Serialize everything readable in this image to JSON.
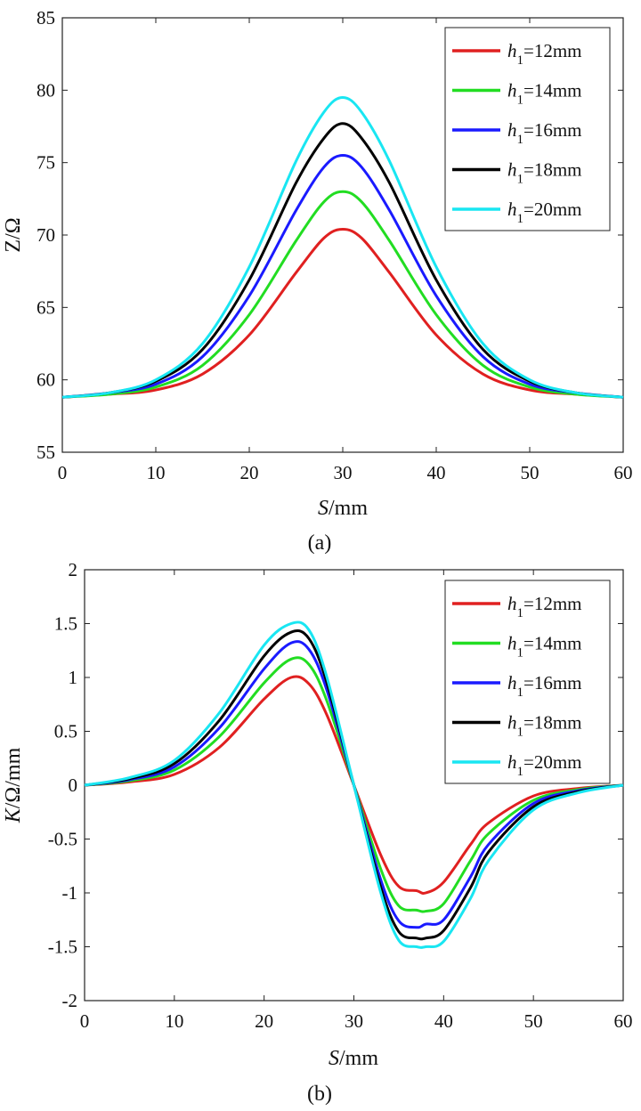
{
  "chart_data": [
    {
      "panel": "a",
      "type": "line",
      "caption": "(a)",
      "xlabel": {
        "italic": "S",
        "rest": "/mm"
      },
      "ylabel": "Z/Ω",
      "xlim": [
        0,
        60
      ],
      "ylim": [
        55,
        85
      ],
      "xticks": [
        0,
        10,
        20,
        30,
        40,
        50,
        60
      ],
      "yticks": [
        55,
        60,
        65,
        70,
        75,
        80,
        85
      ],
      "legend_position": "top-right",
      "x": [
        0,
        5,
        10,
        15,
        20,
        25,
        28,
        30,
        32,
        35,
        40,
        45,
        50,
        55,
        60
      ],
      "series": [
        {
          "name": "h1=12mm",
          "sym": "h",
          "sub": "1",
          "suffix": "=12mm",
          "color": "#e02020",
          "values": [
            58.8,
            59.0,
            59.3,
            60.4,
            63.1,
            67.4,
            69.8,
            70.4,
            69.8,
            67.4,
            63.1,
            60.4,
            59.3,
            59.0,
            58.8
          ]
        },
        {
          "name": "h1=14mm",
          "sym": "h",
          "sub": "1",
          "suffix": "=14mm",
          "color": "#22dd22",
          "values": [
            58.8,
            59.0,
            59.5,
            61.0,
            64.5,
            69.6,
            72.3,
            73.0,
            72.3,
            69.6,
            64.5,
            61.0,
            59.5,
            59.0,
            58.8
          ]
        },
        {
          "name": "h1=16mm",
          "sym": "h",
          "sub": "1",
          "suffix": "=16mm",
          "color": "#1a1aff",
          "values": [
            58.8,
            59.1,
            59.7,
            61.6,
            65.8,
            71.7,
            74.7,
            75.5,
            74.7,
            71.7,
            65.8,
            61.6,
            59.7,
            59.1,
            58.8
          ]
        },
        {
          "name": "h1=18mm",
          "sym": "h",
          "sub": "1",
          "suffix": "=18mm",
          "color": "#000000",
          "values": [
            58.8,
            59.1,
            59.9,
            62.1,
            66.9,
            73.6,
            76.7,
            77.7,
            76.7,
            73.6,
            66.9,
            62.1,
            59.9,
            59.1,
            58.8
          ]
        },
        {
          "name": "h1=20mm",
          "sym": "h",
          "sub": "1",
          "suffix": "=20mm",
          "color": "#19e6f2",
          "values": [
            58.8,
            59.1,
            60.0,
            62.5,
            67.8,
            75.1,
            78.5,
            79.5,
            78.5,
            75.1,
            67.8,
            62.5,
            60.0,
            59.1,
            58.8
          ]
        }
      ]
    },
    {
      "panel": "b",
      "type": "line",
      "caption": "(b)",
      "xlabel": {
        "italic": "S",
        "rest": "/mm"
      },
      "ylabel": {
        "italic": "K",
        "rest": "/Ω/mm"
      },
      "xlim": [
        0,
        60
      ],
      "ylim": [
        -2,
        2
      ],
      "xticks": [
        0,
        10,
        20,
        30,
        40,
        50,
        60
      ],
      "yticks": [
        -2,
        -1.5,
        -1,
        -0.5,
        0,
        0.5,
        1,
        1.5,
        2
      ],
      "legend_position": "top-right",
      "x": [
        0,
        5,
        10,
        15,
        20,
        23,
        25,
        27,
        30,
        33,
        35,
        37,
        38,
        40,
        43,
        45,
        50,
        55,
        60
      ],
      "series": [
        {
          "name": "h1=12mm",
          "sym": "h",
          "sub": "1",
          "suffix": "=12mm",
          "color": "#e02020",
          "values": [
            0,
            0.03,
            0.1,
            0.35,
            0.8,
            1.0,
            0.94,
            0.65,
            0,
            -0.65,
            -0.94,
            -0.98,
            -1.0,
            -0.9,
            -0.55,
            -0.35,
            -0.1,
            -0.03,
            0
          ]
        },
        {
          "name": "h1=14mm",
          "sym": "h",
          "sub": "1",
          "suffix": "=14mm",
          "color": "#22dd22",
          "values": [
            0,
            0.04,
            0.14,
            0.45,
            0.95,
            1.17,
            1.12,
            0.78,
            0,
            -0.78,
            -1.12,
            -1.16,
            -1.17,
            -1.1,
            -0.7,
            -0.45,
            -0.14,
            -0.04,
            0
          ]
        },
        {
          "name": "h1=16mm",
          "sym": "h",
          "sub": "1",
          "suffix": "=16mm",
          "color": "#1a1aff",
          "values": [
            0,
            0.05,
            0.17,
            0.53,
            1.08,
            1.32,
            1.26,
            0.88,
            0,
            -0.88,
            -1.26,
            -1.32,
            -1.29,
            -1.25,
            -0.85,
            -0.55,
            -0.17,
            -0.05,
            0
          ]
        },
        {
          "name": "h1=18mm",
          "sym": "h",
          "sub": "1",
          "suffix": "=18mm",
          "color": "#000000",
          "values": [
            0,
            0.06,
            0.2,
            0.6,
            1.2,
            1.42,
            1.36,
            0.95,
            0,
            -0.95,
            -1.36,
            -1.42,
            -1.42,
            -1.35,
            -0.95,
            -0.62,
            -0.2,
            -0.06,
            0
          ]
        },
        {
          "name": "h1=20mm",
          "sym": "h",
          "sub": "1",
          "suffix": "=20mm",
          "color": "#19e6f2",
          "values": [
            0,
            0.07,
            0.23,
            0.67,
            1.3,
            1.5,
            1.44,
            1.0,
            0,
            -1.0,
            -1.44,
            -1.5,
            -1.5,
            -1.45,
            -1.05,
            -0.7,
            -0.23,
            -0.07,
            0
          ]
        }
      ]
    }
  ]
}
